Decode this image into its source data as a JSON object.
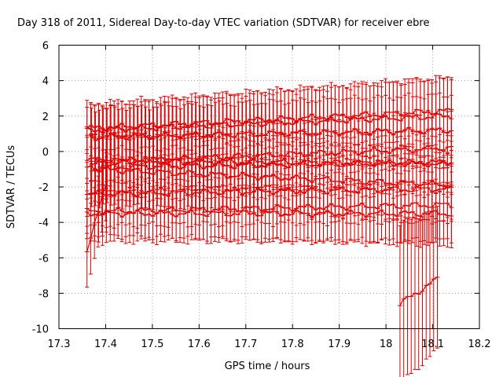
{
  "chart_data": {
    "type": "scatter",
    "title": "Day 318 of 2011, Sidereal Day-to-day VTEC variation (SDTVAR) for receiver ebre",
    "xlabel": "GPS time / hours",
    "ylabel": "SDTVAR / TECUs",
    "xlim": [
      17.3,
      18.2
    ],
    "ylim": [
      -10,
      6
    ],
    "xticks": [
      "17.3",
      "17.4",
      "17.5",
      "17.6",
      "17.7",
      "17.8",
      "17.9",
      "18",
      "18.1",
      "18.2"
    ],
    "yticks": [
      "6",
      "4",
      "2",
      "0",
      "-2",
      "-4",
      "-6",
      "-8",
      "-10"
    ],
    "grid": true,
    "legend": "none",
    "series_color": "#e00000",
    "x_step": 0.0083,
    "series": [
      {
        "name": "s1",
        "x_start": 17.36,
        "x_end": 18.14,
        "y_start": 1.3,
        "y_end": 2.3,
        "err_start": 1.2,
        "err_end": 1.8
      },
      {
        "name": "s2",
        "x_start": 17.36,
        "x_end": 18.14,
        "y_start": 1.2,
        "y_end": 2.0,
        "err_start": 1.5,
        "err_end": 2.2
      },
      {
        "name": "s3",
        "x_start": 17.37,
        "x_end": 18.14,
        "y_start": 0.8,
        "y_end": 1.2,
        "err_start": 1.6,
        "err_end": 2.0
      },
      {
        "name": "s4",
        "x_start": 17.37,
        "x_end": 18.14,
        "y_start": -0.6,
        "y_end": 0.2,
        "err_start": 1.7,
        "err_end": 2.0
      },
      {
        "name": "s5",
        "x_start": 17.36,
        "x_end": 18.14,
        "y_start": -0.5,
        "y_end": -0.7,
        "err_start": 1.3,
        "err_end": 1.6
      },
      {
        "name": "s6",
        "x_start": 17.36,
        "x_end": 18.14,
        "y_start": -0.9,
        "y_end": -0.6,
        "err_start": 1.8,
        "err_end": 1.8
      },
      {
        "name": "s7",
        "x_start": 17.37,
        "x_end": 18.14,
        "y_start": -1.0,
        "y_end": -1.9,
        "err_start": 2.0,
        "err_end": 2.0
      },
      {
        "name": "s8",
        "x_start": 17.36,
        "x_end": 18.14,
        "y_start": -2.4,
        "y_end": -2.1,
        "err_start": 1.8,
        "err_end": 1.8
      },
      {
        "name": "s9",
        "x_start": 17.36,
        "x_end": 18.14,
        "y_start": -3.4,
        "y_end": -3.0,
        "err_start": 1.7,
        "err_end": 2.0
      },
      {
        "name": "s10",
        "x_start": 17.36,
        "x_end": 18.14,
        "y_start": -3.5,
        "y_end": -3.5,
        "err_start": 1.2,
        "err_end": 1.8
      },
      {
        "name": "s11",
        "x_start": 17.36,
        "x_end": 17.4,
        "y_start": -5.5,
        "y_end": -2.0,
        "err_start": 2.0,
        "err_end": 2.0
      },
      {
        "name": "s12",
        "x_start": 18.03,
        "x_end": 18.11,
        "y_start": -8.6,
        "y_end": -7.2,
        "err_start": 4.5,
        "err_end": 4.0
      }
    ]
  }
}
